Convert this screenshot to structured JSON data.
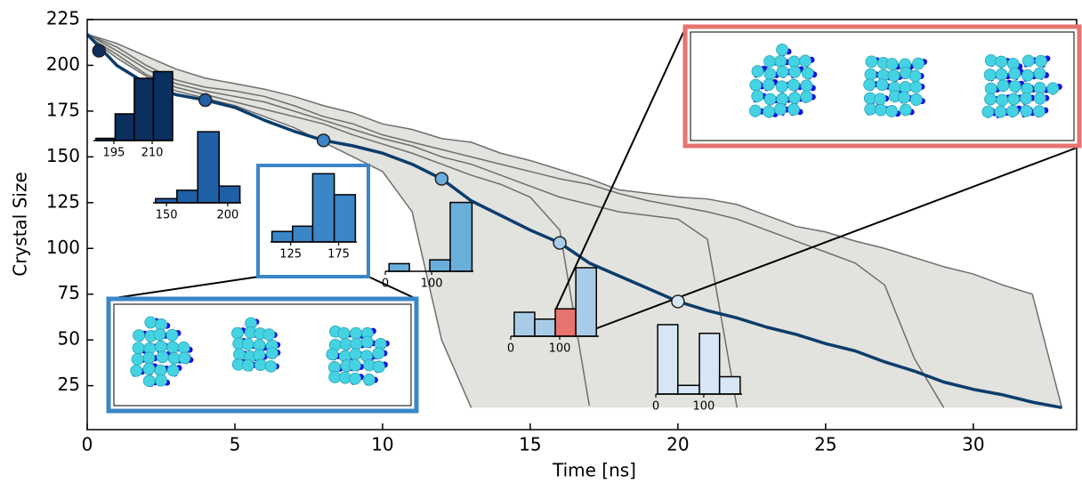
{
  "chart_data": [
    {
      "type": "line",
      "x_label": "Time [ns]",
      "y_label": "Crystal Size",
      "x": [
        0,
        1,
        2,
        3,
        4,
        5,
        6,
        7,
        8,
        9,
        10,
        11,
        12,
        13,
        14,
        15,
        16,
        17,
        18,
        19,
        20,
        21,
        22,
        23,
        24,
        25,
        26,
        27,
        28,
        29,
        30,
        31,
        32,
        33
      ],
      "xlim": [
        0,
        33.5
      ],
      "ylim": [
        1,
        225
      ],
      "xticks": [
        0,
        5,
        10,
        15,
        20,
        25,
        30
      ],
      "yticks": [
        25,
        50,
        75,
        100,
        125,
        150,
        175,
        200,
        225
      ],
      "band": {
        "color": "#e2e2de",
        "upper": [
          217,
          212,
          205,
          198,
          193,
          190,
          187,
          183,
          178,
          174,
          168,
          165,
          160,
          158,
          152,
          148,
          143,
          138,
          132,
          130,
          128,
          127,
          124,
          118,
          112,
          109,
          104,
          100,
          95,
          90,
          86,
          80,
          75,
          13
        ],
        "lower": [
          216,
          204,
          194,
          186,
          182,
          178,
          172,
          166,
          158,
          150,
          142,
          120,
          50,
          13,
          13,
          13,
          13,
          13,
          13,
          13,
          13,
          13,
          13,
          13,
          13,
          13,
          13,
          13,
          13,
          13,
          13,
          13,
          13,
          13
        ]
      },
      "series": [
        {
          "color": "#6e6e6e",
          "values": [
            217,
            212,
            205,
            198,
            193,
            190,
            187,
            183,
            178,
            174,
            168,
            165,
            160,
            158,
            152,
            148,
            143,
            138,
            132,
            130,
            128,
            127,
            124,
            118,
            112,
            109,
            104,
            100,
            95,
            90,
            86,
            80,
            75,
            13
          ]
        },
        {
          "color": "#6e6e6e",
          "values": [
            217,
            210,
            200,
            192,
            188,
            186,
            183,
            178,
            172,
            168,
            162,
            158,
            154,
            150,
            146,
            142,
            138,
            135,
            130,
            126,
            123,
            120,
            116,
            110,
            104,
            98,
            92,
            80,
            40,
            13,
            null,
            null,
            null,
            null
          ]
        },
        {
          "color": "#6e6e6e",
          "values": [
            217,
            208,
            198,
            190,
            186,
            183,
            180,
            175,
            170,
            165,
            160,
            156,
            150,
            146,
            140,
            134,
            128,
            124,
            120,
            118,
            116,
            105,
            13,
            null,
            null,
            null,
            null,
            null,
            null,
            null,
            null,
            null,
            null,
            null
          ]
        },
        {
          "color": "#6e6e6e",
          "values": [
            216,
            206,
            195,
            188,
            184,
            180,
            176,
            172,
            168,
            162,
            157,
            152,
            146,
            140,
            135,
            128,
            110,
            14,
            null,
            null,
            null,
            null,
            null,
            null,
            null,
            null,
            null,
            null,
            null,
            null,
            null,
            null,
            null,
            null
          ]
        },
        {
          "color": "#6e6e6e",
          "values": [
            216,
            204,
            194,
            186,
            182,
            178,
            172,
            166,
            158,
            150,
            142,
            120,
            50,
            13,
            null,
            null,
            null,
            null,
            null,
            null,
            null,
            null,
            null,
            null,
            null,
            null,
            null,
            null,
            null,
            null,
            null,
            null,
            null,
            null
          ]
        },
        {
          "color": "#0b3d6b",
          "values": [
            217,
            200,
            190,
            184,
            181,
            177,
            170,
            164,
            159,
            156,
            152,
            146,
            138,
            126,
            118,
            110,
            103,
            92,
            85,
            78,
            71,
            66,
            62,
            57,
            53,
            48,
            44,
            38,
            33,
            27,
            23,
            20,
            16,
            13
          ]
        }
      ],
      "markers": {
        "x": [
          0.4,
          4,
          8,
          12,
          16,
          20
        ],
        "values": [
          208,
          181,
          159,
          138,
          103,
          71
        ],
        "colors": [
          "#0b2f5e",
          "#1f5fa6",
          "#3a86c6",
          "#6aaedb",
          "#a8cce8",
          "#d6e6f6"
        ]
      }
    },
    {
      "type": "histogram",
      "bins": [
        188,
        195.5,
        203,
        210.5,
        218
      ],
      "values": [
        1,
        12,
        28,
        31
      ],
      "xlim": [
        187,
        218
      ],
      "xticks": [
        195,
        210
      ],
      "color": "#0b2f5e"
    },
    {
      "type": "histogram",
      "bins": [
        141,
        158.5,
        175.5,
        193,
        210
      ],
      "values": [
        1,
        3,
        17,
        4
      ],
      "xlim": [
        139,
        211
      ],
      "xticks": [
        150,
        200
      ],
      "color": "#1f5fa6"
    },
    {
      "type": "histogram",
      "bins": [
        105.5,
        127,
        148,
        170.5,
        192.5
      ],
      "values": [
        2,
        3,
        13,
        9
      ],
      "xlim": [
        104,
        194
      ],
      "xticks": [
        125,
        175
      ],
      "color": "#3a86c6"
    },
    {
      "type": "histogram",
      "bins": [
        8,
        52,
        96,
        140,
        187
      ],
      "values": [
        2,
        0,
        3,
        18
      ],
      "xlim": [
        0,
        190
      ],
      "xticks": [
        0,
        100
      ],
      "color": "#6aaedb"
    },
    {
      "type": "histogram",
      "bins": [
        7,
        49,
        91,
        133,
        175
      ],
      "values": [
        7,
        5,
        8,
        20
      ],
      "xlim": [
        0,
        180
      ],
      "xticks": [
        0,
        100
      ],
      "color": "#a8cce8",
      "highlight_bin": 2,
      "highlight_color": "#e8736f"
    },
    {
      "type": "histogram",
      "bins": [
        4,
        46,
        91,
        133,
        176
      ],
      "values": [
        8,
        1,
        7,
        2
      ],
      "xlim": [
        0,
        180
      ],
      "xticks": [
        0,
        100
      ],
      "color": "#d6e6f6"
    }
  ]
}
